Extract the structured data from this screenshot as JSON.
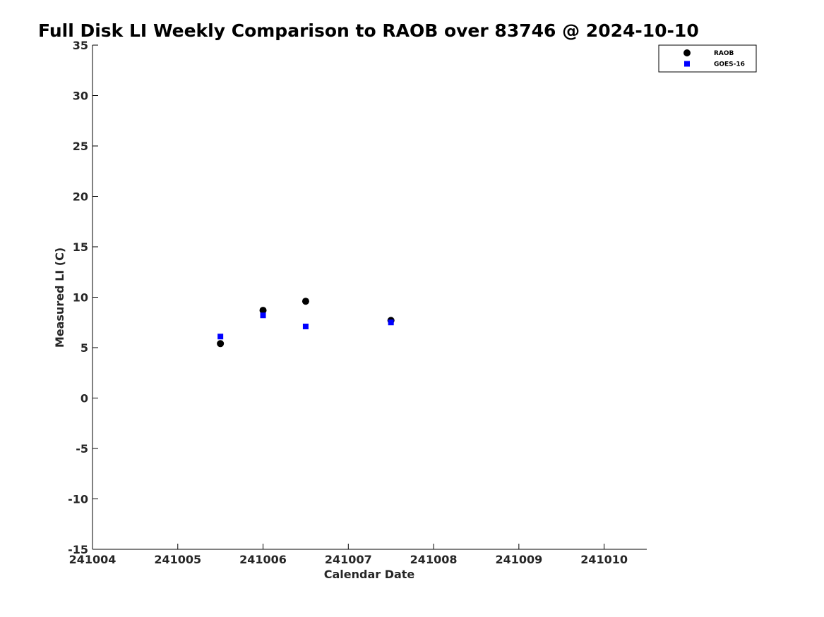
{
  "chart_data": {
    "type": "scatter",
    "title": "Full Disk LI Weekly Comparison to RAOB over 83746 @ 2024-10-10",
    "xlabel": "Calendar Date",
    "ylabel": "Measured LI (C)",
    "xlim": [
      "241004",
      "241010.5"
    ],
    "ylim": [
      -15,
      35
    ],
    "x_ticks": [
      "241004",
      "241005",
      "241006",
      "241007",
      "241008",
      "241009",
      "241010"
    ],
    "y_ticks": [
      35,
      30,
      25,
      20,
      15,
      10,
      5,
      0,
      -5,
      -10,
      -15
    ],
    "grid": false,
    "legend_position": "top-right",
    "series": [
      {
        "name": "RAOB",
        "marker": "circle",
        "color": "#000000",
        "x": [
          "241005.5",
          "241006",
          "241006.5",
          "241007.5"
        ],
        "y": [
          5.4,
          8.7,
          9.6,
          7.7
        ]
      },
      {
        "name": "GOES-16",
        "marker": "square",
        "color": "#0000ff",
        "x": [
          "241005.5",
          "241006",
          "241006.5",
          "241007.5"
        ],
        "y": [
          6.1,
          8.2,
          7.1,
          7.5
        ]
      }
    ]
  }
}
